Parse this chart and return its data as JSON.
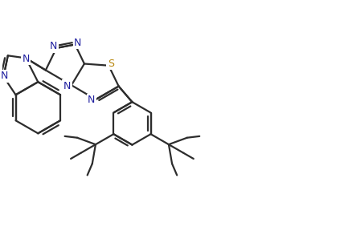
{
  "bg_color": "#ffffff",
  "line_color": "#2d2d2d",
  "N_color": "#2020a0",
  "S_color": "#b8860b",
  "line_width": 1.6,
  "figsize": [
    4.28,
    3.13
  ],
  "dpi": 100,
  "xlim": [
    -1.0,
    8.5
  ],
  "ylim": [
    -2.5,
    4.5
  ]
}
